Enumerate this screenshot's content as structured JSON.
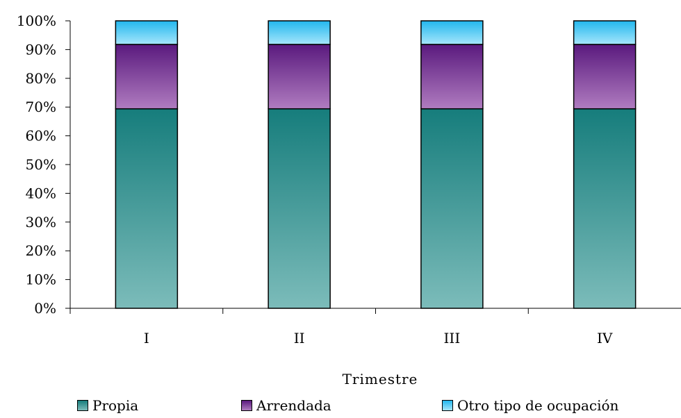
{
  "chart_data": {
    "type": "bar",
    "stacked": true,
    "percent": true,
    "categories": [
      "I",
      "II",
      "III",
      "IV"
    ],
    "series": [
      {
        "name": "Propia",
        "values": [
          69.4,
          69.4,
          69.4,
          69.4
        ],
        "color_top": "#167d7c",
        "color_bottom": "#7cbcba"
      },
      {
        "name": "Arrendada",
        "values": [
          22.4,
          22.4,
          22.4,
          22.4
        ],
        "color_top": "#5a1a7e",
        "color_bottom": "#b07cc0"
      },
      {
        "name": "Otro tipo de ocupación",
        "values": [
          8.2,
          8.2,
          8.2,
          8.2
        ],
        "color_top": "#22b7ee",
        "color_bottom": "#a6e6fb"
      }
    ],
    "yticks": [
      "0%",
      "10%",
      "20%",
      "30%",
      "40%",
      "50%",
      "60%",
      "70%",
      "80%",
      "90%",
      "100%"
    ],
    "ylim": [
      0,
      100
    ],
    "xlabel": "Trimestre",
    "ylabel": "",
    "title": "",
    "legend_position": "bottom",
    "grid": false
  }
}
